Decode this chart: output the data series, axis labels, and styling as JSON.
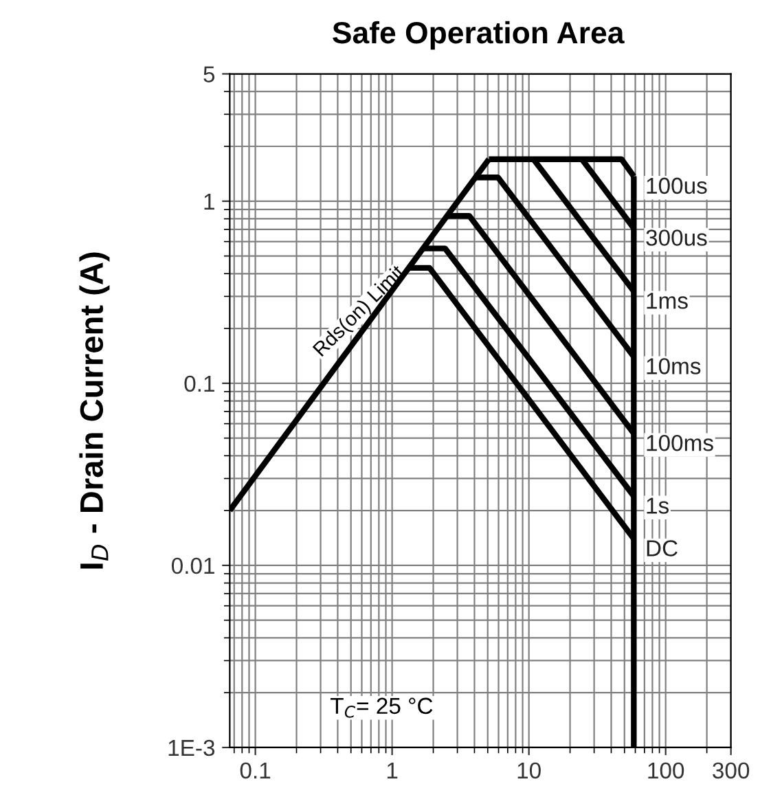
{
  "chart_data": {
    "type": "line",
    "title": "Safe Operation Area",
    "ylabel": "I$_{D}$ - Drain Current (A)",
    "log": "xy",
    "grid": true,
    "marker": "none",
    "line_style": "solid",
    "xlim": [
      0.065,
      300
    ],
    "ylim": [
      0.001,
      5
    ],
    "xticks": [
      0.1,
      1,
      10,
      100,
      300
    ],
    "yticks": [
      {
        "value": 0.001,
        "label": "1E-3"
      },
      {
        "value": 0.01,
        "label": "0.01"
      },
      {
        "value": 0.1,
        "label": "0.1"
      },
      1,
      5
    ],
    "series": [
      {
        "color": "#000000",
        "x": [
          0.065,
          5.1
        ],
        "values": [
          0.02,
          1.7
        ]
      },
      {
        "name": "100us",
        "color": "#000000",
        "x": [
          5.1,
          47.6,
          58.5
        ],
        "values": [
          1.7,
          1.7,
          1.37
        ]
      },
      {
        "name": "300us",
        "color": "#000000",
        "x": [
          24.4,
          58.5
        ],
        "values": [
          1.7,
          0.71
        ]
      },
      {
        "name": "1ms",
        "color": "#000000",
        "x": [
          10.8,
          58.5
        ],
        "values": [
          1.7,
          0.32
        ]
      },
      {
        "name": "10ms",
        "color": "#000000",
        "x": [
          4.05,
          5.95,
          58.5
        ],
        "values": [
          1.35,
          1.35,
          0.14
        ]
      },
      {
        "name": "100ms",
        "color": "#000000",
        "x": [
          2.5,
          3.67,
          58.5
        ],
        "values": [
          0.83,
          0.83,
          0.053
        ]
      },
      {
        "name": "1s",
        "color": "#000000",
        "x": [
          1.65,
          2.44,
          58.5
        ],
        "values": [
          0.55,
          0.55,
          0.024
        ]
      },
      {
        "name": "DC",
        "color": "#000000",
        "x": [
          1.3,
          1.88,
          58.5
        ],
        "values": [
          0.43,
          0.43,
          0.014
        ]
      },
      {
        "color": "#000000",
        "x": [
          58.5,
          58.5
        ],
        "values": [
          1.37,
          0.001
        ]
      }
    ],
    "annotations": [
      {
        "text": "Rds(on) Limit",
        "x": 0.35,
        "y": 0.115
      },
      "T$_{C}$= 25 °C"
    ]
  }
}
